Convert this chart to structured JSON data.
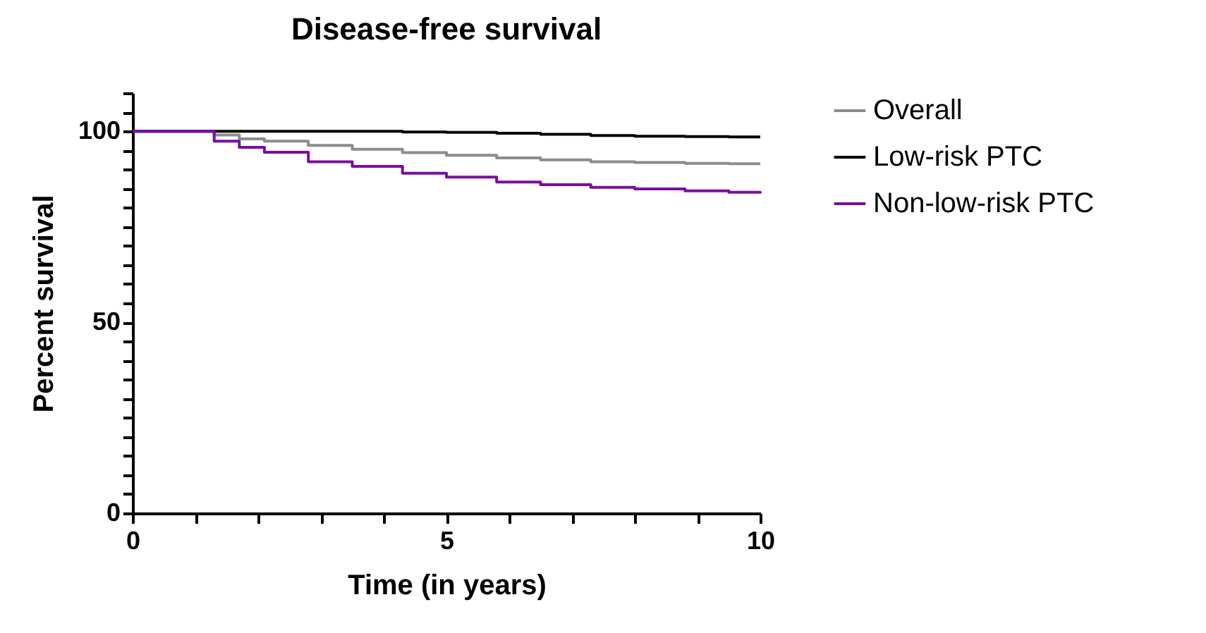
{
  "chart_data": {
    "type": "step",
    "title": "Disease-free survival",
    "xlabel": "Time (in years)",
    "ylabel": "Percent survival",
    "x": [
      0,
      0.9,
      1.3,
      1.7,
      2.1,
      2.8,
      3.5,
      4.3,
      5,
      5.8,
      6.5,
      7.3,
      8,
      8.8,
      9.5,
      10
    ],
    "series": [
      {
        "name": "Overall",
        "color": "#8c8c8c",
        "values": [
          100,
          100,
          99,
          98,
          97.4,
          96.3,
          95.3,
          94.4,
          93.7,
          93,
          92.5,
          92,
          91.8,
          91.6,
          91.5,
          91.5
        ]
      },
      {
        "name": "Low-risk PTC",
        "color": "#000000",
        "values": [
          100,
          100,
          100,
          100,
          100,
          100,
          100,
          99.8,
          99.7,
          99.5,
          99.2,
          98.9,
          98.7,
          98.6,
          98.5,
          98.5
        ]
      },
      {
        "name": "Non-low-risk PTC",
        "color": "#7a0f9e",
        "values": [
          100,
          100,
          97.4,
          95.8,
          94.5,
          92,
          90.8,
          89,
          88,
          86.7,
          86,
          85.3,
          84.9,
          84.4,
          84,
          83.7
        ]
      }
    ],
    "xlim": [
      0,
      10
    ],
    "xticks": [
      0,
      {
        "value": 1,
        "label": null
      },
      {
        "value": 2,
        "label": null
      },
      {
        "value": 3,
        "label": null
      },
      {
        "value": 4,
        "label": null
      },
      5,
      {
        "value": 6,
        "label": null
      },
      {
        "value": 7,
        "label": null
      },
      {
        "value": 8,
        "label": null
      },
      {
        "value": 9,
        "label": null
      },
      10
    ],
    "ylim": [
      0,
      110
    ],
    "yticks": [
      0,
      {
        "value": 5,
        "label": null
      },
      {
        "value": 10,
        "label": null
      },
      {
        "value": 15,
        "label": null
      },
      {
        "value": 20,
        "label": null
      },
      {
        "value": 25,
        "label": null
      },
      {
        "value": 30,
        "label": null
      },
      {
        "value": 35,
        "label": null
      },
      {
        "value": 40,
        "label": null
      },
      {
        "value": 45,
        "label": null
      },
      50,
      {
        "value": 55,
        "label": null
      },
      {
        "value": 60,
        "label": null
      },
      {
        "value": 65,
        "label": null
      },
      {
        "value": 70,
        "label": null
      },
      {
        "value": 75,
        "label": null
      },
      {
        "value": 80,
        "label": null
      },
      {
        "value": 85,
        "label": null
      },
      {
        "value": 90,
        "label": null
      },
      {
        "value": 95,
        "label": null
      },
      100,
      {
        "value": 105,
        "label": null
      },
      {
        "value": 110,
        "label": null
      }
    ],
    "grid": false,
    "legend": "right",
    "line_style": "solid",
    "marker": "none"
  }
}
